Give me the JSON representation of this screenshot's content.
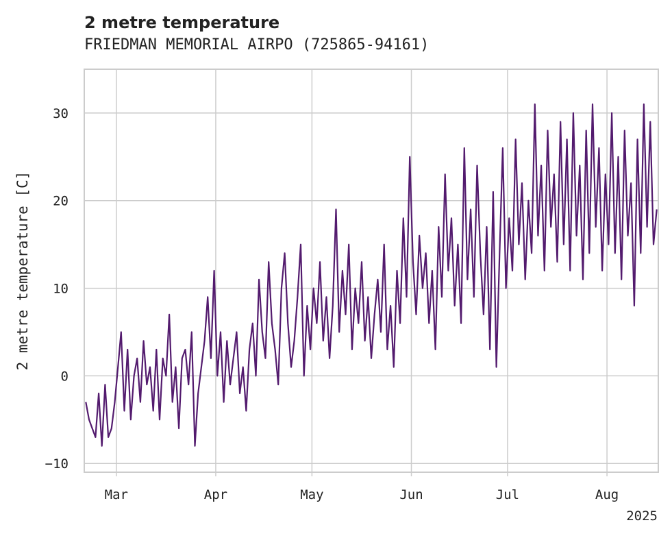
{
  "chart_data": {
    "type": "line",
    "title": "2 metre temperature",
    "subtitle": "FRIEDMAN MEMORIAL AIRPO (725865-94161)",
    "xlabel": "",
    "ylabel": "2 metre temperature [C]",
    "x_range": [
      "2025-02-19",
      "2025-08-16"
    ],
    "ylim": [
      -11,
      35
    ],
    "x_ticks": [
      {
        "date": "2025-03-01",
        "label": "Mar"
      },
      {
        "date": "2025-04-01",
        "label": "Apr"
      },
      {
        "date": "2025-05-01",
        "label": "May"
      },
      {
        "date": "2025-06-01",
        "label": "Jun"
      },
      {
        "date": "2025-07-01",
        "label": "Jul"
      },
      {
        "date": "2025-08-01",
        "label": "Aug"
      }
    ],
    "x_year_label": "2025",
    "y_ticks": [
      -10,
      0,
      10,
      20,
      30
    ],
    "grid": true,
    "series": [
      {
        "color": "#531b6e",
        "points": [
          [
            "2025-02-19",
            -3
          ],
          [
            "2025-02-20",
            -5
          ],
          [
            "2025-02-21",
            -6
          ],
          [
            "2025-02-22",
            -7
          ],
          [
            "2025-02-23",
            -2
          ],
          [
            "2025-02-24",
            -8
          ],
          [
            "2025-02-25",
            -1
          ],
          [
            "2025-02-26",
            -7
          ],
          [
            "2025-02-27",
            -6
          ],
          [
            "2025-02-28",
            -3
          ],
          [
            "2025-03-01",
            1
          ],
          [
            "2025-03-02",
            5
          ],
          [
            "2025-03-03",
            -4
          ],
          [
            "2025-03-04",
            3
          ],
          [
            "2025-03-05",
            -5
          ],
          [
            "2025-03-06",
            0
          ],
          [
            "2025-03-07",
            2
          ],
          [
            "2025-03-08",
            -3
          ],
          [
            "2025-03-09",
            4
          ],
          [
            "2025-03-10",
            -1
          ],
          [
            "2025-03-11",
            1
          ],
          [
            "2025-03-12",
            -4
          ],
          [
            "2025-03-13",
            3
          ],
          [
            "2025-03-14",
            -5
          ],
          [
            "2025-03-15",
            2
          ],
          [
            "2025-03-16",
            0
          ],
          [
            "2025-03-17",
            7
          ],
          [
            "2025-03-18",
            -3
          ],
          [
            "2025-03-19",
            1
          ],
          [
            "2025-03-20",
            -6
          ],
          [
            "2025-03-21",
            2
          ],
          [
            "2025-03-22",
            3
          ],
          [
            "2025-03-23",
            -1
          ],
          [
            "2025-03-24",
            5
          ],
          [
            "2025-03-25",
            -8
          ],
          [
            "2025-03-26",
            -2
          ],
          [
            "2025-03-27",
            1
          ],
          [
            "2025-03-28",
            4
          ],
          [
            "2025-03-29",
            9
          ],
          [
            "2025-03-30",
            2
          ],
          [
            "2025-03-31",
            12
          ],
          [
            "2025-04-01",
            0
          ],
          [
            "2025-04-02",
            5
          ],
          [
            "2025-04-03",
            -3
          ],
          [
            "2025-04-04",
            4
          ],
          [
            "2025-04-05",
            -1
          ],
          [
            "2025-04-06",
            2
          ],
          [
            "2025-04-07",
            5
          ],
          [
            "2025-04-08",
            -2
          ],
          [
            "2025-04-09",
            1
          ],
          [
            "2025-04-10",
            -4
          ],
          [
            "2025-04-11",
            3
          ],
          [
            "2025-04-12",
            6
          ],
          [
            "2025-04-13",
            0
          ],
          [
            "2025-04-14",
            11
          ],
          [
            "2025-04-15",
            5
          ],
          [
            "2025-04-16",
            2
          ],
          [
            "2025-04-17",
            13
          ],
          [
            "2025-04-18",
            6
          ],
          [
            "2025-04-19",
            3
          ],
          [
            "2025-04-20",
            -1
          ],
          [
            "2025-04-21",
            10
          ],
          [
            "2025-04-22",
            14
          ],
          [
            "2025-04-23",
            6
          ],
          [
            "2025-04-24",
            1
          ],
          [
            "2025-04-25",
            4
          ],
          [
            "2025-04-26",
            9
          ],
          [
            "2025-04-27",
            15
          ],
          [
            "2025-04-28",
            0
          ],
          [
            "2025-04-29",
            8
          ],
          [
            "2025-04-30",
            3
          ],
          [
            "2025-05-01",
            10
          ],
          [
            "2025-05-02",
            6
          ],
          [
            "2025-05-03",
            13
          ],
          [
            "2025-05-04",
            4
          ],
          [
            "2025-05-05",
            9
          ],
          [
            "2025-05-06",
            2
          ],
          [
            "2025-05-07",
            8
          ],
          [
            "2025-05-08",
            19
          ],
          [
            "2025-05-09",
            5
          ],
          [
            "2025-05-10",
            12
          ],
          [
            "2025-05-11",
            7
          ],
          [
            "2025-05-12",
            15
          ],
          [
            "2025-05-13",
            3
          ],
          [
            "2025-05-14",
            10
          ],
          [
            "2025-05-15",
            6
          ],
          [
            "2025-05-16",
            13
          ],
          [
            "2025-05-17",
            4
          ],
          [
            "2025-05-18",
            9
          ],
          [
            "2025-05-19",
            2
          ],
          [
            "2025-05-20",
            7
          ],
          [
            "2025-05-21",
            11
          ],
          [
            "2025-05-22",
            5
          ],
          [
            "2025-05-23",
            15
          ],
          [
            "2025-05-24",
            3
          ],
          [
            "2025-05-25",
            8
          ],
          [
            "2025-05-26",
            1
          ],
          [
            "2025-05-27",
            12
          ],
          [
            "2025-05-28",
            6
          ],
          [
            "2025-05-29",
            18
          ],
          [
            "2025-05-30",
            9
          ],
          [
            "2025-05-31",
            25
          ],
          [
            "2025-06-01",
            13
          ],
          [
            "2025-06-02",
            7
          ],
          [
            "2025-06-03",
            16
          ],
          [
            "2025-06-04",
            10
          ],
          [
            "2025-06-05",
            14
          ],
          [
            "2025-06-06",
            6
          ],
          [
            "2025-06-07",
            12
          ],
          [
            "2025-06-08",
            3
          ],
          [
            "2025-06-09",
            17
          ],
          [
            "2025-06-10",
            9
          ],
          [
            "2025-06-11",
            23
          ],
          [
            "2025-06-12",
            12
          ],
          [
            "2025-06-13",
            18
          ],
          [
            "2025-06-14",
            8
          ],
          [
            "2025-06-15",
            15
          ],
          [
            "2025-06-16",
            6
          ],
          [
            "2025-06-17",
            26
          ],
          [
            "2025-06-18",
            11
          ],
          [
            "2025-06-19",
            19
          ],
          [
            "2025-06-20",
            9
          ],
          [
            "2025-06-21",
            24
          ],
          [
            "2025-06-22",
            14
          ],
          [
            "2025-06-23",
            7
          ],
          [
            "2025-06-24",
            17
          ],
          [
            "2025-06-25",
            3
          ],
          [
            "2025-06-26",
            21
          ],
          [
            "2025-06-27",
            1
          ],
          [
            "2025-06-28",
            14
          ],
          [
            "2025-06-29",
            26
          ],
          [
            "2025-06-30",
            10
          ],
          [
            "2025-07-01",
            18
          ],
          [
            "2025-07-02",
            12
          ],
          [
            "2025-07-03",
            27
          ],
          [
            "2025-07-04",
            15
          ],
          [
            "2025-07-05",
            22
          ],
          [
            "2025-07-06",
            11
          ],
          [
            "2025-07-07",
            20
          ],
          [
            "2025-07-08",
            14
          ],
          [
            "2025-07-09",
            31
          ],
          [
            "2025-07-10",
            16
          ],
          [
            "2025-07-11",
            24
          ],
          [
            "2025-07-12",
            12
          ],
          [
            "2025-07-13",
            28
          ],
          [
            "2025-07-14",
            17
          ],
          [
            "2025-07-15",
            23
          ],
          [
            "2025-07-16",
            13
          ],
          [
            "2025-07-17",
            29
          ],
          [
            "2025-07-18",
            15
          ],
          [
            "2025-07-19",
            27
          ],
          [
            "2025-07-20",
            12
          ],
          [
            "2025-07-21",
            30
          ],
          [
            "2025-07-22",
            16
          ],
          [
            "2025-07-23",
            24
          ],
          [
            "2025-07-24",
            11
          ],
          [
            "2025-07-25",
            28
          ],
          [
            "2025-07-26",
            14
          ],
          [
            "2025-07-27",
            31
          ],
          [
            "2025-07-28",
            17
          ],
          [
            "2025-07-29",
            26
          ],
          [
            "2025-07-30",
            12
          ],
          [
            "2025-07-31",
            23
          ],
          [
            "2025-08-01",
            15
          ],
          [
            "2025-08-02",
            30
          ],
          [
            "2025-08-03",
            14
          ],
          [
            "2025-08-04",
            25
          ],
          [
            "2025-08-05",
            11
          ],
          [
            "2025-08-06",
            28
          ],
          [
            "2025-08-07",
            16
          ],
          [
            "2025-08-08",
            22
          ],
          [
            "2025-08-09",
            8
          ],
          [
            "2025-08-10",
            27
          ],
          [
            "2025-08-11",
            14
          ],
          [
            "2025-08-12",
            31
          ],
          [
            "2025-08-13",
            17
          ],
          [
            "2025-08-14",
            29
          ],
          [
            "2025-08-15",
            15
          ],
          [
            "2025-08-16",
            19
          ]
        ]
      }
    ]
  }
}
